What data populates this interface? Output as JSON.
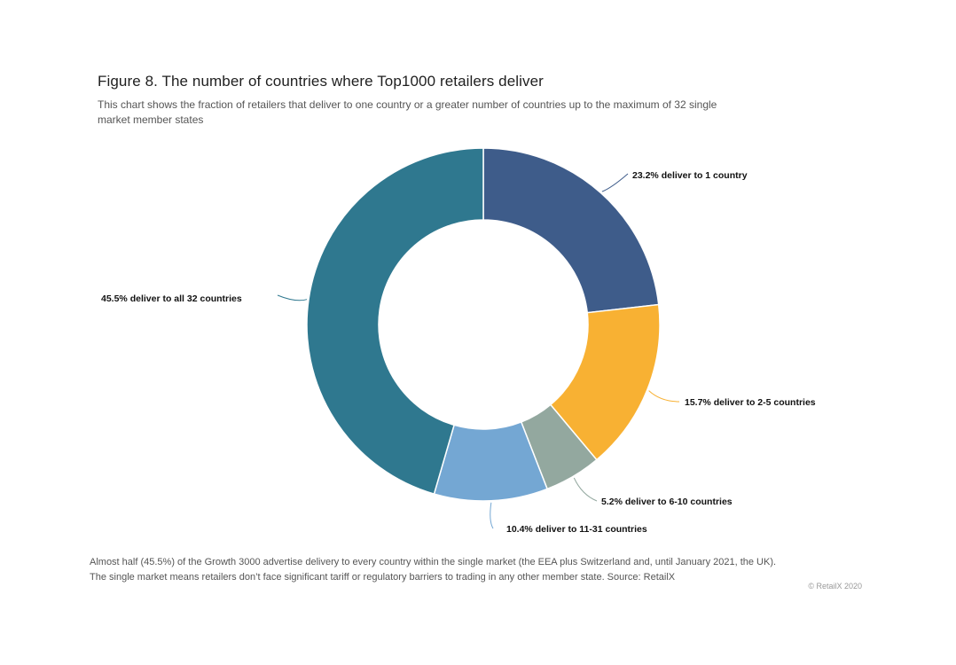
{
  "title": "Figure 8. The number of countries where Top1000 retailers deliver",
  "subtitle": "This chart shows the fraction of retailers that deliver to one country or a greater number of countries up to the maximum of 32 single market member states",
  "chart_data": {
    "type": "pie",
    "donut": true,
    "legend": "none",
    "slices": [
      {
        "label": "23.2% deliver to 1 country",
        "value": 23.2,
        "color": "#3e5c8a"
      },
      {
        "label": "15.7% deliver to 2-5 countries",
        "value": 15.7,
        "color": "#f8b133"
      },
      {
        "label": "5.2% deliver to 6-10 countries",
        "value": 5.2,
        "color": "#93a89f"
      },
      {
        "label": "10.4% deliver to 11-31 countries",
        "value": 10.4,
        "color": "#74a7d3"
      },
      {
        "label": "45.5% deliver to all 32 countries",
        "value": 45.5,
        "color": "#2f788f"
      }
    ]
  },
  "caption": {
    "line1": "Almost half (45.5%) of the Growth 3000 advertise delivery to every country within the single market (the EEA plus Switzerland and, until January 2021, the UK).",
    "line2": "The single market means retailers don’t face significant tariff or regulatory barriers to trading in any other member state. Source: RetailX"
  },
  "copyright": "© RetailX 2020"
}
